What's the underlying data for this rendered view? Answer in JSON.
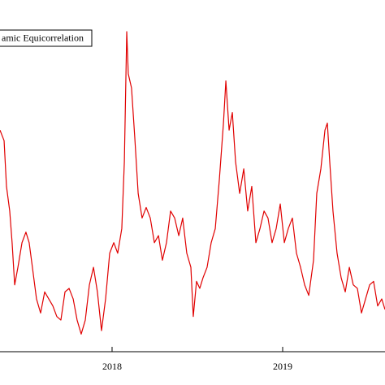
{
  "chart_data": {
    "type": "line",
    "x": [
      2017.343,
      2017.367,
      2017.381,
      2017.4,
      2017.414,
      2017.429,
      2017.448,
      2017.472,
      2017.495,
      2017.514,
      2017.533,
      2017.557,
      2017.581,
      2017.605,
      2017.629,
      2017.653,
      2017.676,
      2017.7,
      2017.724,
      2017.748,
      2017.772,
      2017.795,
      2017.819,
      2017.843,
      2017.867,
      2017.891,
      2017.914,
      2017.938,
      2017.962,
      2017.986,
      2018.01,
      2018.033,
      2018.057,
      2018.072,
      2018.086,
      2018.095,
      2018.114,
      2018.133,
      2018.153,
      2018.176,
      2018.2,
      2018.224,
      2018.248,
      2018.272,
      2018.295,
      2018.319,
      2018.343,
      2018.367,
      2018.391,
      2018.414,
      2018.438,
      2018.462,
      2018.476,
      2018.495,
      2018.514,
      2018.533,
      2018.557,
      2018.581,
      2018.605,
      2018.629,
      2018.653,
      2018.667,
      2018.686,
      2018.705,
      2018.724,
      2018.748,
      2018.772,
      2018.795,
      2018.819,
      2018.843,
      2018.867,
      2018.891,
      2018.914,
      2018.938,
      2018.962,
      2018.986,
      2019.01,
      2019.033,
      2019.057,
      2019.081,
      2019.105,
      2019.129,
      2019.153,
      2019.167,
      2019.181,
      2019.2,
      2019.224,
      2019.248,
      2019.262,
      2019.276,
      2019.295,
      2019.319,
      2019.343,
      2019.367,
      2019.391,
      2019.414,
      2019.438,
      2019.462,
      2019.486,
      2019.51,
      2019.533,
      2019.557,
      2019.581,
      2019.6
    ],
    "series": [
      {
        "name": "amic Equicorrelation",
        "color": "#e00000",
        "values": [
          0.63,
          0.6,
          0.47,
          0.4,
          0.31,
          0.19,
          0.24,
          0.31,
          0.34,
          0.31,
          0.24,
          0.15,
          0.11,
          0.17,
          0.15,
          0.13,
          0.1,
          0.09,
          0.17,
          0.18,
          0.15,
          0.09,
          0.05,
          0.09,
          0.19,
          0.24,
          0.17,
          0.06,
          0.15,
          0.28,
          0.31,
          0.28,
          0.35,
          0.54,
          0.91,
          0.79,
          0.75,
          0.61,
          0.45,
          0.38,
          0.41,
          0.38,
          0.31,
          0.33,
          0.26,
          0.31,
          0.4,
          0.38,
          0.33,
          0.38,
          0.28,
          0.24,
          0.1,
          0.2,
          0.18,
          0.21,
          0.24,
          0.31,
          0.35,
          0.49,
          0.65,
          0.77,
          0.63,
          0.68,
          0.54,
          0.45,
          0.52,
          0.4,
          0.47,
          0.31,
          0.35,
          0.4,
          0.38,
          0.31,
          0.35,
          0.42,
          0.31,
          0.35,
          0.38,
          0.28,
          0.24,
          0.19,
          0.16,
          0.21,
          0.26,
          0.45,
          0.52,
          0.63,
          0.65,
          0.54,
          0.4,
          0.28,
          0.21,
          0.17,
          0.24,
          0.19,
          0.18,
          0.11,
          0.15,
          0.19,
          0.2,
          0.13,
          0.15,
          0.12
        ]
      }
    ],
    "xlim": [
      2017.343,
      2019.6
    ],
    "xticks": [
      2018,
      2019
    ],
    "ylim": [
      0,
      1
    ]
  }
}
